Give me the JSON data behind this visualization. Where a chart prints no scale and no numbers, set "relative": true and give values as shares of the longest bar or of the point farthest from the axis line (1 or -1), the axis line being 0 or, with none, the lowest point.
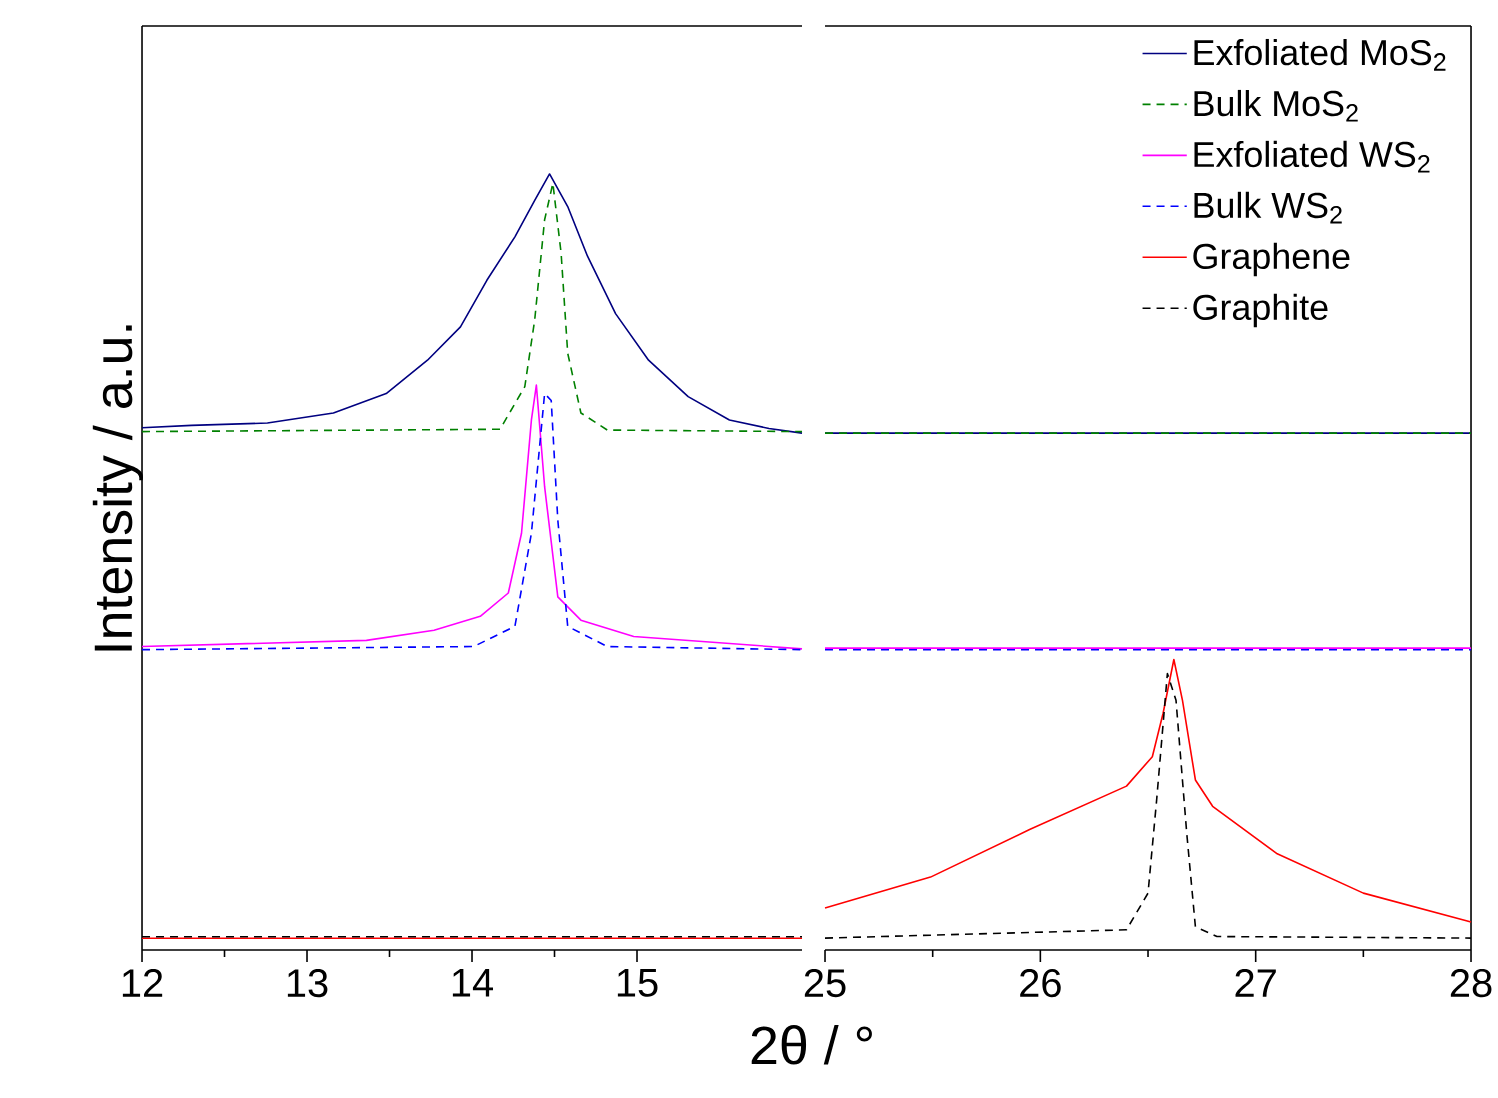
{
  "chart_data": [
    {
      "type": "line",
      "ylabel": "Intensity / a.u.",
      "relative": true,
      "xlim": [
        12,
        16
      ],
      "xticks": [
        12,
        13,
        14,
        15
      ],
      "legend": false,
      "grid": false,
      "series": [
        {
          "color": "#000080",
          "line_style": "solid",
          "x": [
            12.0,
            12.3,
            12.76,
            13.16,
            13.48,
            13.73,
            13.93,
            14.09,
            14.26,
            14.38,
            14.47,
            14.58,
            14.7,
            14.87,
            15.07,
            15.31,
            15.56,
            15.8,
            16.0
          ],
          "values": [
            0.673,
            0.676,
            0.679,
            0.692,
            0.717,
            0.76,
            0.803,
            0.863,
            0.919,
            0.966,
            1.0,
            0.958,
            0.894,
            0.82,
            0.76,
            0.713,
            0.683,
            0.672,
            0.666
          ]
        },
        {
          "color": "#008000",
          "line_style": "dashed",
          "x": [
            12.0,
            14.17,
            14.32,
            14.38,
            14.44,
            14.49,
            14.54,
            14.58,
            14.66,
            14.82,
            16.0
          ],
          "values": [
            0.668,
            0.671,
            0.726,
            0.812,
            0.941,
            0.988,
            0.898,
            0.769,
            0.692,
            0.67,
            0.668
          ]
        },
        {
          "color": "#ff00ff",
          "line_style": "solid",
          "x": [
            12.0,
            13.36,
            13.77,
            14.05,
            14.22,
            14.3,
            14.36,
            14.39,
            14.44,
            14.52,
            14.66,
            14.98,
            16.0
          ],
          "values": [
            0.391,
            0.399,
            0.412,
            0.43,
            0.46,
            0.537,
            0.683,
            0.728,
            0.597,
            0.455,
            0.425,
            0.404,
            0.388
          ]
        },
        {
          "color": "#0000ff",
          "line_style": "dashed",
          "x": [
            12.0,
            14.01,
            14.26,
            14.36,
            14.44,
            14.48,
            14.52,
            14.58,
            14.82,
            16.0
          ],
          "values": [
            0.387,
            0.391,
            0.417,
            0.537,
            0.717,
            0.708,
            0.554,
            0.417,
            0.391,
            0.387
          ]
        },
        {
          "color": "#ff0000",
          "line_style": "solid",
          "x": [
            12.0,
            16.0
          ],
          "values": [
            0.015,
            0.015
          ]
        },
        {
          "color": "#000000",
          "line_style": "dashed",
          "x": [
            12.0,
            16.0
          ],
          "values": [
            0.017,
            0.017
          ]
        }
      ]
    },
    {
      "type": "line",
      "xlabel": "2θ / °",
      "relative": true,
      "xlim": [
        25,
        28
      ],
      "xticks": [
        25,
        26,
        27,
        28
      ],
      "legend": "top right",
      "grid": false,
      "series": [
        {
          "name": "Exfoliated MoS$_{2}$",
          "color": "#000080",
          "line_style": "solid",
          "x": [
            25.0,
            28.0
          ],
          "values": [
            1.0,
            1.0
          ]
        },
        {
          "name": "Bulk MoS$_{2}$",
          "color": "#008000",
          "line_style": "dashed",
          "x": [
            25.0,
            28.0
          ],
          "values": [
            1.0,
            1.0
          ]
        },
        {
          "name": "Exfoliated WS$_{2}$",
          "color": "#ff00ff",
          "line_style": "solid",
          "x": [
            25.0,
            28.0
          ],
          "values": [
            0.584,
            0.584
          ]
        },
        {
          "name": "Bulk WS$_{2}$",
          "color": "#0000ff",
          "line_style": "dashed",
          "x": [
            25.0,
            28.0
          ],
          "values": [
            0.581,
            0.581
          ]
        },
        {
          "name": "Graphene",
          "color": "#ff0000",
          "line_style": "solid",
          "x": [
            25.0,
            25.49,
            25.95,
            26.4,
            26.52,
            26.57,
            26.62,
            26.66,
            26.72,
            26.8,
            27.1,
            27.5,
            28.0
          ],
          "values": [
            0.081,
            0.141,
            0.233,
            0.317,
            0.374,
            0.458,
            0.562,
            0.483,
            0.329,
            0.278,
            0.186,
            0.11,
            0.054
          ]
        },
        {
          "name": "Graphite",
          "color": "#000000",
          "line_style": "dashed",
          "x": [
            25.0,
            26.4,
            26.5,
            26.54,
            26.59,
            26.63,
            26.68,
            26.72,
            26.82,
            28.0
          ],
          "values": [
            0.023,
            0.039,
            0.11,
            0.29,
            0.535,
            0.483,
            0.225,
            0.045,
            0.026,
            0.023
          ]
        }
      ]
    }
  ]
}
